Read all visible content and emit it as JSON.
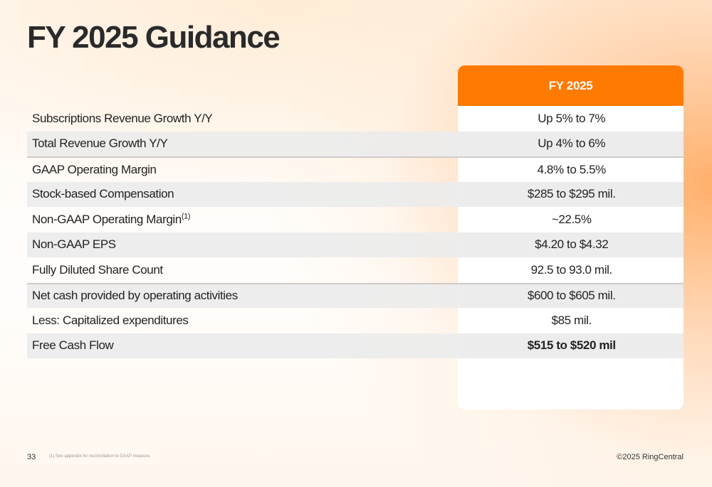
{
  "title": "FY 2025 Guidance",
  "column_header": "FY 2025",
  "rows": [
    {
      "label": "Subscriptions Revenue Growth Y/Y",
      "value": "Up 5% to 7%"
    },
    {
      "label": "Total Revenue Growth Y/Y",
      "value": "Up 4% to 6%"
    },
    {
      "label": "GAAP Operating Margin",
      "value": "4.8% to 5.5%"
    },
    {
      "label": "Stock-based Compensation",
      "value": "$285 to $295 mil."
    },
    {
      "label": "Non-GAAP Operating Margin",
      "label_sup": "(1)",
      "value": "~22.5%"
    },
    {
      "label": "Non-GAAP EPS",
      "value": "$4.20 to $4.32"
    },
    {
      "label": "Fully Diluted Share Count",
      "value": "92.5 to 93.0 mil."
    },
    {
      "label": "Net cash provided by operating activities",
      "value": "$600 to $605 mil."
    },
    {
      "label": "Less: Capitalized expenditures",
      "value": "$85 mil."
    },
    {
      "label": "Free Cash Flow",
      "value": "$515 to $520 mil"
    }
  ],
  "footer": {
    "page_number": "33",
    "footnote": "(1)  See appendix for reconciliation to GAAP measure.",
    "copyright": "©2025 RingCentral"
  },
  "colors": {
    "accent": "#ff7a00",
    "row_shade": "#ececec"
  }
}
